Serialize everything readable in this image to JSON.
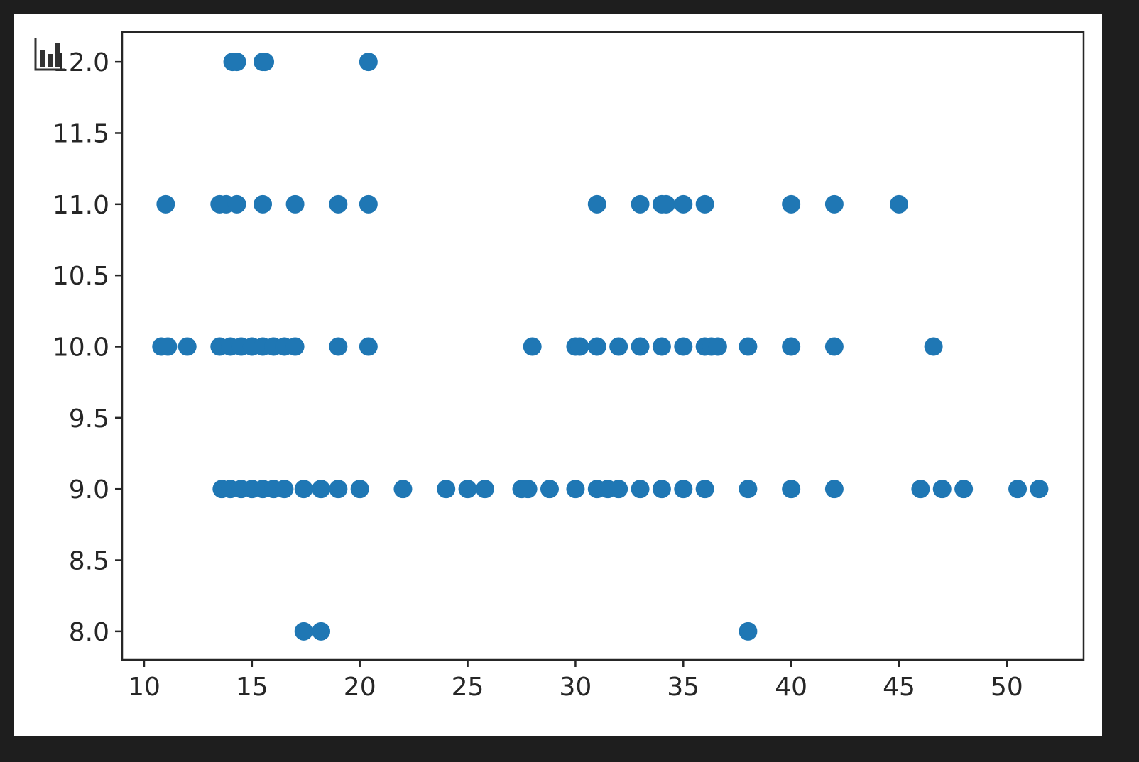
{
  "toolbar": {
    "icon": "bar-chart-icon"
  },
  "chart_data": {
    "type": "scatter",
    "title": "",
    "xlabel": "",
    "ylabel": "",
    "xlim": [
      8.98,
      53.56
    ],
    "ylim": [
      7.8,
      12.21
    ],
    "xticks": [
      10,
      15,
      20,
      25,
      30,
      35,
      40,
      45,
      50
    ],
    "yticks": [
      8.0,
      8.5,
      9.0,
      9.5,
      10.0,
      10.5,
      11.0,
      11.5,
      12.0
    ],
    "xtick_labels": [
      "10",
      "15",
      "20",
      "25",
      "30",
      "35",
      "40",
      "45",
      "50"
    ],
    "ytick_labels": [
      "8.0",
      "8.5",
      "9.0",
      "9.5",
      "10.0",
      "10.5",
      "11.0",
      "11.5",
      "12.0"
    ],
    "grid": false,
    "color": "#1f77b4",
    "points": [
      [
        14.1,
        12
      ],
      [
        14.3,
        12
      ],
      [
        15.5,
        12
      ],
      [
        15.6,
        12
      ],
      [
        20.4,
        12
      ],
      [
        11,
        11
      ],
      [
        13.5,
        11
      ],
      [
        13.8,
        11
      ],
      [
        14.3,
        11
      ],
      [
        15.5,
        11
      ],
      [
        17,
        11
      ],
      [
        19,
        11
      ],
      [
        20.4,
        11
      ],
      [
        31,
        11
      ],
      [
        33,
        11
      ],
      [
        34,
        11
      ],
      [
        34.2,
        11
      ],
      [
        35,
        11
      ],
      [
        36,
        11
      ],
      [
        40,
        11
      ],
      [
        42,
        11
      ],
      [
        45,
        11
      ],
      [
        10.8,
        10
      ],
      [
        11.1,
        10
      ],
      [
        12,
        10
      ],
      [
        13.5,
        10
      ],
      [
        14,
        10
      ],
      [
        14.5,
        10
      ],
      [
        15,
        10
      ],
      [
        15.5,
        10
      ],
      [
        16,
        10
      ],
      [
        16.5,
        10
      ],
      [
        17,
        10
      ],
      [
        19,
        10
      ],
      [
        20.4,
        10
      ],
      [
        28,
        10
      ],
      [
        30,
        10
      ],
      [
        30.2,
        10
      ],
      [
        31,
        10
      ],
      [
        32,
        10
      ],
      [
        33,
        10
      ],
      [
        34,
        10
      ],
      [
        35,
        10
      ],
      [
        36,
        10
      ],
      [
        36.3,
        10
      ],
      [
        36.6,
        10
      ],
      [
        38,
        10
      ],
      [
        40,
        10
      ],
      [
        42,
        10
      ],
      [
        46.6,
        10
      ],
      [
        13.6,
        9
      ],
      [
        14,
        9
      ],
      [
        14.5,
        9
      ],
      [
        15,
        9
      ],
      [
        15.5,
        9
      ],
      [
        16,
        9
      ],
      [
        16.5,
        9
      ],
      [
        17.4,
        9
      ],
      [
        18.2,
        9
      ],
      [
        19,
        9
      ],
      [
        20,
        9
      ],
      [
        22,
        9
      ],
      [
        24,
        9
      ],
      [
        25,
        9
      ],
      [
        25.8,
        9
      ],
      [
        27.5,
        9
      ],
      [
        27.8,
        9
      ],
      [
        28.8,
        9
      ],
      [
        30,
        9
      ],
      [
        31,
        9
      ],
      [
        31.5,
        9
      ],
      [
        32,
        9
      ],
      [
        33,
        9
      ],
      [
        34,
        9
      ],
      [
        35,
        9
      ],
      [
        36,
        9
      ],
      [
        38,
        9
      ],
      [
        40,
        9
      ],
      [
        42,
        9
      ],
      [
        46,
        9
      ],
      [
        47,
        9
      ],
      [
        48,
        9
      ],
      [
        50.5,
        9
      ],
      [
        51.5,
        9
      ],
      [
        17.4,
        8
      ],
      [
        18.2,
        8
      ],
      [
        38,
        8
      ]
    ]
  }
}
